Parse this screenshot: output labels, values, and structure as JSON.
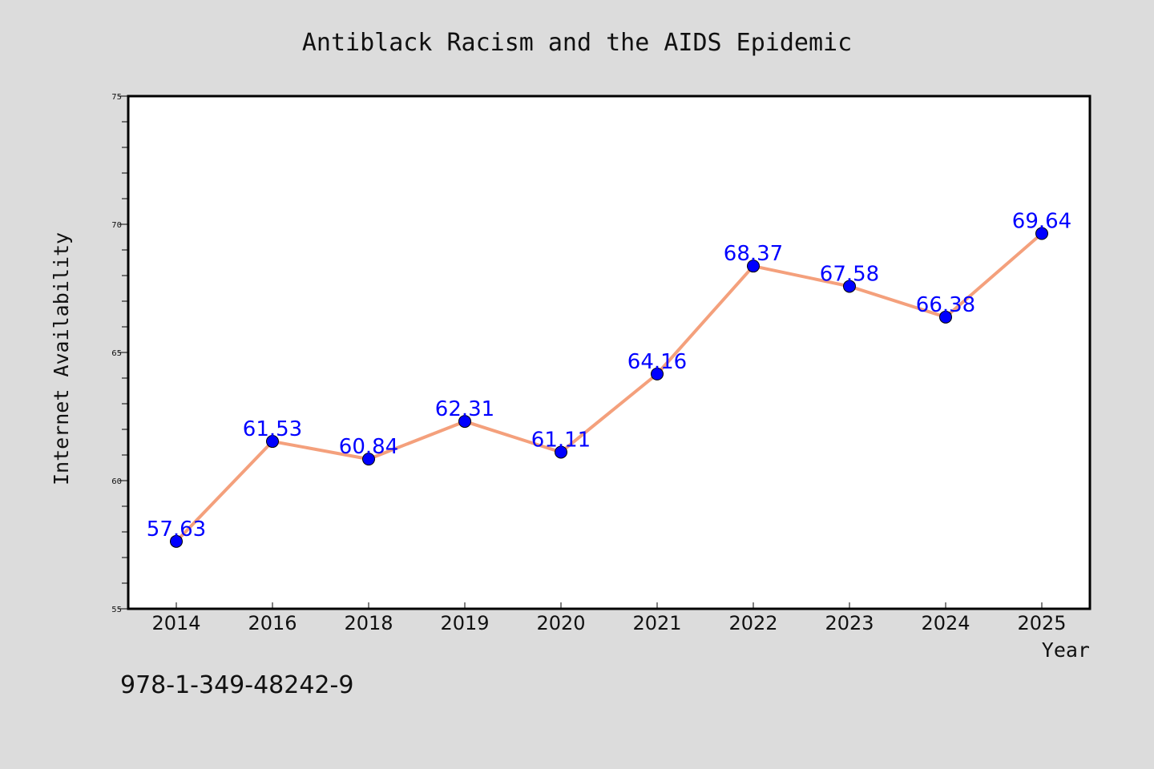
{
  "chart_data": {
    "type": "line",
    "title": "Antiblack Racism and the AIDS Epidemic",
    "xlabel": "Year",
    "ylabel": "Internet Availability",
    "categories": [
      "2014",
      "2016",
      "2018",
      "2019",
      "2020",
      "2021",
      "2022",
      "2023",
      "2024",
      "2025"
    ],
    "series": [
      {
        "values": [
          57.63,
          61.53,
          60.84,
          62.31,
          61.11,
          64.16,
          68.37,
          67.58,
          66.38,
          69.64
        ],
        "labels": [
          "57.63",
          "61.53",
          "60.84",
          "62.31",
          "61.11",
          "64.16",
          "68.37",
          "67.58",
          "66.38",
          "69.64"
        ],
        "line_color": "#f4a07c",
        "marker_color": "#0000ff"
      }
    ],
    "ylim": [
      55,
      75
    ],
    "y_major_ticks": [
      55,
      60,
      65,
      70,
      75
    ],
    "y_minor_step": 1,
    "grid": false,
    "footnote": "978-1-349-48242-9"
  }
}
